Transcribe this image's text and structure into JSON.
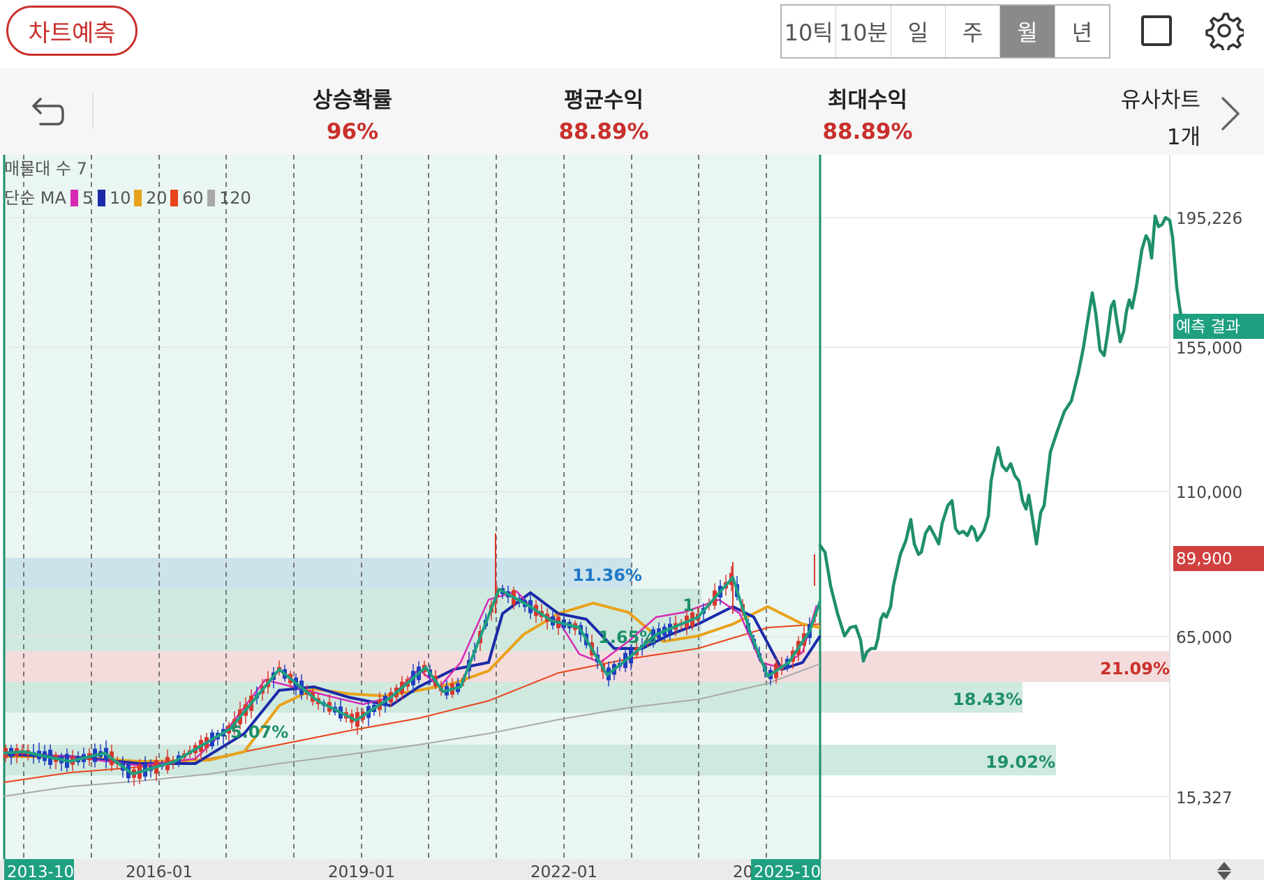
{
  "header": {
    "predict_button": "차트예측",
    "periods": [
      {
        "label": "10틱",
        "active": false
      },
      {
        "label": "10분",
        "active": false
      },
      {
        "label": "일",
        "active": false
      },
      {
        "label": "주",
        "active": false
      },
      {
        "label": "월",
        "active": true
      },
      {
        "label": "년",
        "active": false
      }
    ],
    "icons": [
      "square-icon",
      "gear-icon"
    ]
  },
  "stats": {
    "rise_prob": {
      "label": "상승확률",
      "value": "96%"
    },
    "avg_return": {
      "label": "평균수익",
      "value": "88.89%"
    },
    "max_return": {
      "label": "최대수익",
      "value": "88.89%"
    },
    "similar": {
      "label": "유사차트",
      "value": "1개"
    }
  },
  "chart": {
    "volume_profile_label": "매물대 수 7",
    "ma_label": "단순 MA",
    "ma_items": [
      {
        "period": "5",
        "color": "#d62ab5"
      },
      {
        "period": "10",
        "color": "#1a2aa8"
      },
      {
        "period": "20",
        "color": "#e8a21a"
      },
      {
        "period": "60",
        "color": "#e8431a"
      },
      {
        "period": "120",
        "color": "#a9a9a9"
      }
    ],
    "price_labels": [
      "195,226",
      "155,000",
      "110,000",
      "65,000",
      "15,327"
    ],
    "current_price": "89,900",
    "predict_tag": "예측 결과",
    "date_labels": [
      "2016-01",
      "2019-01",
      "2022-01"
    ],
    "start_date": "2013-10",
    "end_date": "2025-10",
    "partial_date": "20",
    "band_labels": [
      "11.36%",
      "1.65%",
      "21.09%",
      "18.43%",
      "19.02%"
    ],
    "hidden_partial_labels": [
      "5.07%",
      "1"
    ],
    "colors": {
      "red": "#c9302c",
      "green": "#1e8f6b",
      "blue": "#1e78c8",
      "band_green": "#cfe9df",
      "band_blue": "#cfe4ee",
      "band_red": "#f8dcdc"
    }
  }
}
